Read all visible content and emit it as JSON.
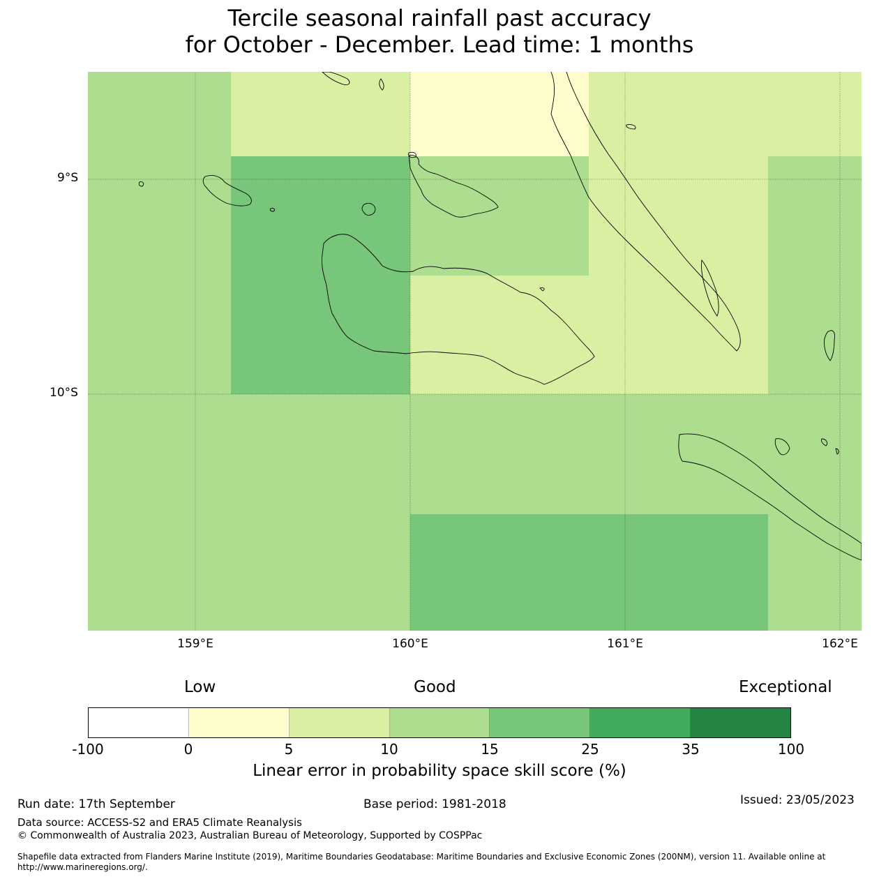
{
  "title": {
    "line1": "Tercile seasonal rainfall past accuracy",
    "line2": "for October - December. Lead time: 1 months"
  },
  "map": {
    "lat_labels": [
      "9°S",
      "10°S"
    ],
    "lon_labels": [
      "159°E",
      "160°E",
      "161°E",
      "162°E"
    ],
    "icons": {
      "coastline": "coastline-icon"
    }
  },
  "legend": {
    "levels": {
      "low": "Low",
      "good": "Good",
      "exceptional": "Exceptional"
    },
    "ticks": [
      "-100",
      "0",
      "5",
      "10",
      "15",
      "25",
      "35",
      "100"
    ],
    "colors": [
      "#ffffff",
      "#fffdcc",
      "#d9f0a3",
      "#addd8e",
      "#78c679",
      "#41ab5d",
      "#238443"
    ],
    "title": "Linear error in probability space skill score (%)"
  },
  "footer": {
    "run_date": "Run date: 17th September",
    "base_period": "Base period: 1981-2018",
    "issued": "Issued: 23/05/2023",
    "data_source": "Data source: ACCESS-S2 and ERA5 Climate Reanalysis",
    "copyright": "© Commonwealth of Australia 2023, Australian Bureau of Meteorology, Supported by COSPPac",
    "shapefile_line1": "Shapefile data extracted from Flanders Marine Institute (2019), Maritime Boundaries Geodatabase: Maritime Boundaries and Exclusive Economic Zones (200NM), version 11. Available online at",
    "shapefile_line2": "http://www.marineregions.org/."
  }
}
